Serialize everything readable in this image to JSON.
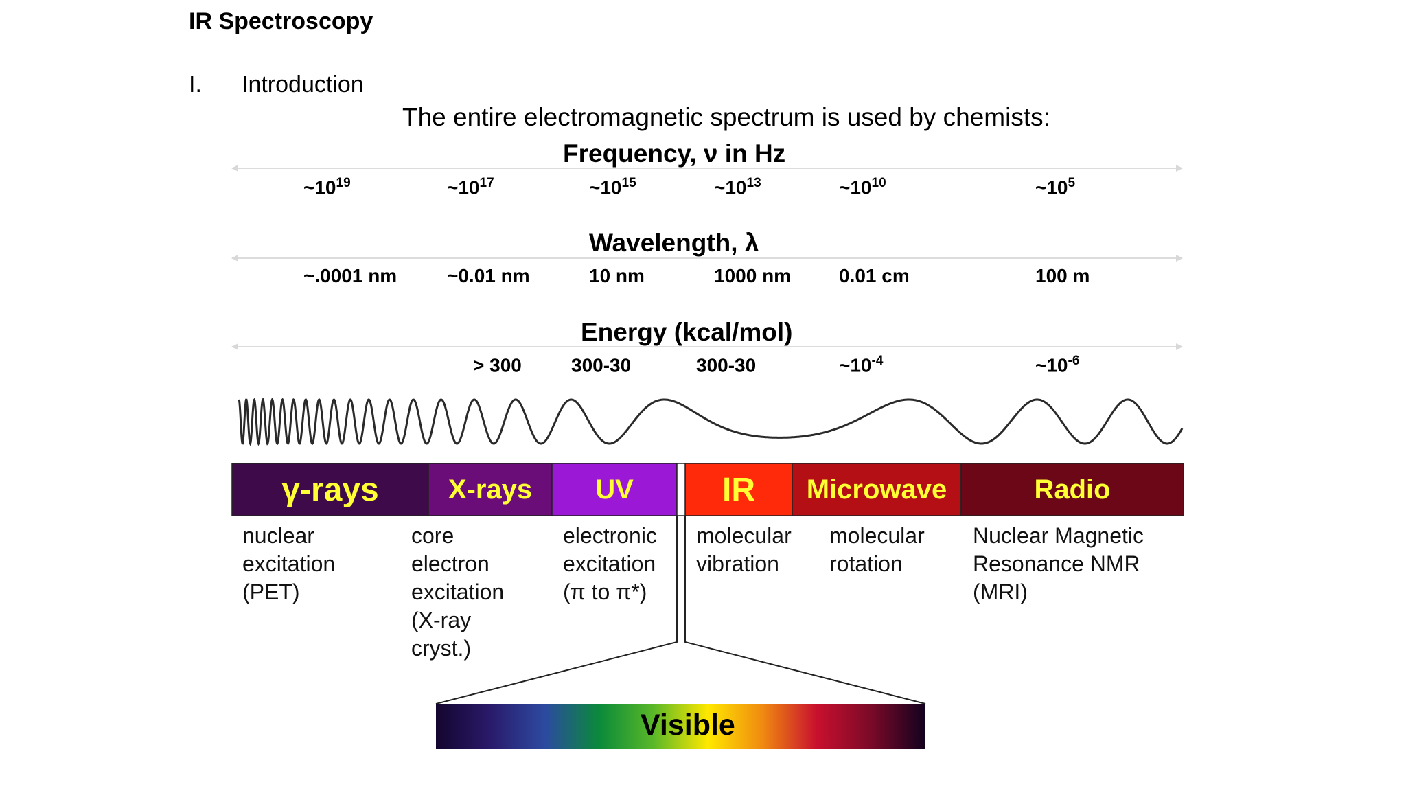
{
  "document": {
    "title": "IR Spectroscopy",
    "section_number": "I.",
    "section_title": "Introduction",
    "headline": "The entire electromagnetic spectrum is used by chemists:"
  },
  "scales": {
    "frequency": {
      "label": "Frequency, ν in Hz",
      "ticks": [
        {
          "base": "~10",
          "exp": "19"
        },
        {
          "base": "~10",
          "exp": "17"
        },
        {
          "base": "~10",
          "exp": "15"
        },
        {
          "base": "~10",
          "exp": "13"
        },
        {
          "base": "~10",
          "exp": "10"
        },
        {
          "base": "~10",
          "exp": "5"
        }
      ]
    },
    "wavelength": {
      "label": "Wavelength, λ",
      "ticks": [
        "~.0001 nm",
        "~0.01 nm",
        "10 nm",
        "1000 nm",
        "0.01 cm",
        "100 m"
      ]
    },
    "energy": {
      "label": "Energy (kcal/mol)",
      "ticks": [
        {
          "base": "> 300",
          "exp": ""
        },
        {
          "base": "300-30",
          "exp": ""
        },
        {
          "base": "300-30",
          "exp": ""
        },
        {
          "base": "~10",
          "exp": "-4"
        },
        {
          "base": "~10",
          "exp": "-6"
        }
      ]
    }
  },
  "bands": [
    {
      "name": "γ-rays",
      "color": "#3e0a4a",
      "text_color": "#ffff33",
      "description": [
        "nuclear",
        "excitation",
        "(PET)"
      ]
    },
    {
      "name": "X-rays",
      "color": "#6b0d78",
      "text_color": "#ffff33",
      "description": [
        "core",
        "electron",
        "excitation",
        "(X-ray",
        "cryst.)"
      ]
    },
    {
      "name": "UV",
      "color": "#9b19d6",
      "text_color": "#ffff33",
      "description": [
        "electronic",
        "excitation",
        "(π to π*)"
      ]
    },
    {
      "name": "IR",
      "color": "#ff2a0a",
      "text_color": "#ffff33",
      "description": [
        "molecular",
        "vibration"
      ]
    },
    {
      "name": "Microwave",
      "color": "#b30f14",
      "text_color": "#ffff33",
      "description": [
        "molecular",
        "rotation"
      ]
    },
    {
      "name": "Radio",
      "color": "#6b0716",
      "text_color": "#ffff33",
      "description": [
        "Nuclear Magnetic",
        "Resonance  NMR",
        "(MRI)"
      ]
    }
  ],
  "visible": {
    "label": "Visible",
    "gradient_colors": [
      "#14052e",
      "#2a1a6b",
      "#2c4aa0",
      "#0a8a3a",
      "#5ab828",
      "#ffe800",
      "#f08a10",
      "#c8102e",
      "#7a0a28",
      "#12021e"
    ]
  }
}
